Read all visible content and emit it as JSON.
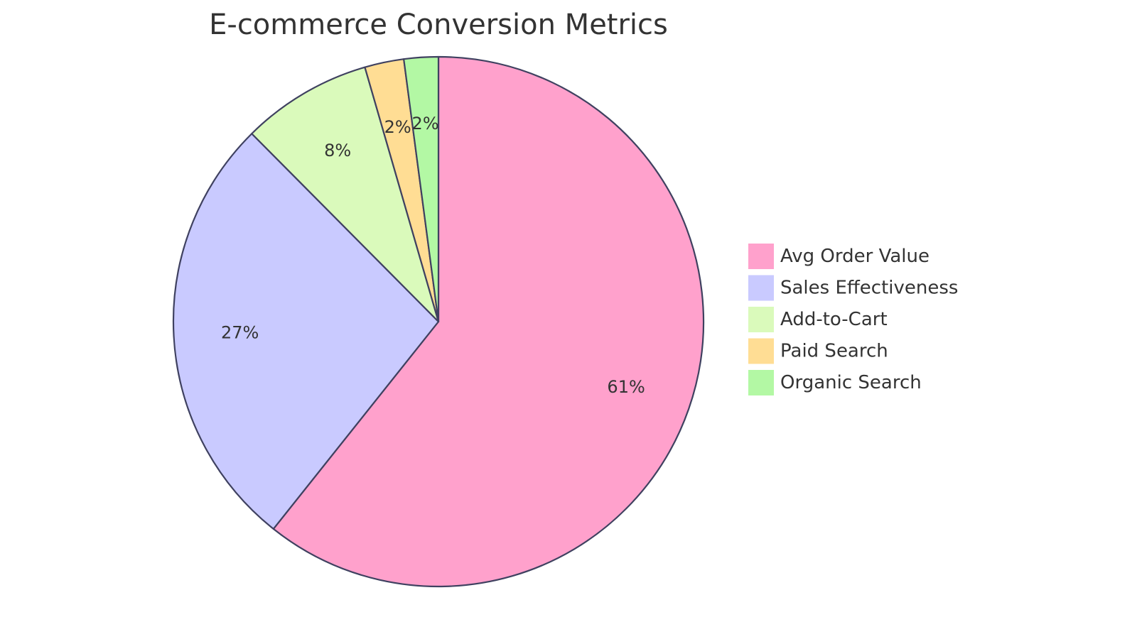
{
  "chart_data": {
    "type": "pie",
    "title": "E-commerce Conversion Metrics",
    "start_angle_deg": 0,
    "direction": "clockwise",
    "legend_position": "right",
    "slices": [
      {
        "name": "Avg Order Value",
        "value": 61,
        "label": "61%",
        "color": "#ffa1cc"
      },
      {
        "name": "Sales Effectiveness",
        "value": 27,
        "label": "27%",
        "color": "#c9caff"
      },
      {
        "name": "Add-to-Cart",
        "value": 8,
        "label": "8%",
        "color": "#dafabb"
      },
      {
        "name": "Paid Search",
        "value": 2.4,
        "label": "2%",
        "color": "#ffdd94"
      },
      {
        "name": "Organic Search",
        "value": 2.1,
        "label": "2%",
        "color": "#b3f8a4"
      }
    ]
  }
}
